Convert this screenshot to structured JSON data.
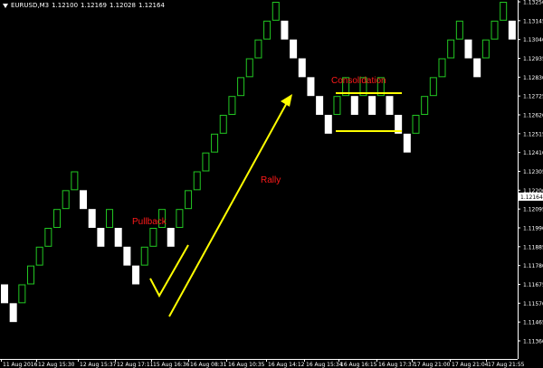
{
  "header": {
    "symbol": "EURUSD,M3",
    "open": "1.12100",
    "high": "1.12169",
    "low": "1.12028",
    "close": "1.12164"
  },
  "colors": {
    "background": "#000000",
    "grid_axis": "#ffffff",
    "bull_outline": "#22c822",
    "bear_fill": "#ffffff",
    "annotation_line": "#ffff00",
    "annotation_text": "#ff1a1a",
    "price_marker_bg": "#ffffff",
    "price_marker_text": "#000000"
  },
  "annotations": {
    "pullback": "Pullback",
    "rally": "Rally",
    "consolidation": "Consolidation"
  },
  "chart_data": {
    "type": "renko",
    "brick_size": 0.00105,
    "ylim": [
      1.1136,
      1.1324
    ],
    "y_ticks": [
      "1.13250",
      "1.13145",
      "1.13040",
      "1.12935",
      "1.12830",
      "1.12725",
      "1.12620",
      "1.12515",
      "1.12410",
      "1.12305",
      "1.12200",
      "1.12095",
      "1.11990",
      "1.11885",
      "1.11780",
      "1.11675",
      "1.11570",
      "1.11465",
      "1.11360"
    ],
    "current_price": "1.12164",
    "x_ticks": [
      "11 Aug 2016",
      "12 Aug 15:30",
      "12 Aug 15:37",
      "12 Aug 17:11",
      "15 Aug 16:36",
      "16 Aug 08:31",
      "16 Aug 10:35",
      "16 Aug 14:12",
      "16 Aug 15:34",
      "16 Aug 16:15",
      "16 Aug 17:37",
      "17 Aug 21:00",
      "17 Aug 21:04",
      "17 Aug 21:55"
    ],
    "bricks": [
      {
        "dir": "down",
        "low": 1.1157
      },
      {
        "dir": "down",
        "low": 1.11465
      },
      {
        "dir": "up",
        "low": 1.1157
      },
      {
        "dir": "up",
        "low": 1.11675
      },
      {
        "dir": "up",
        "low": 1.1178
      },
      {
        "dir": "up",
        "low": 1.11885
      },
      {
        "dir": "up",
        "low": 1.1199
      },
      {
        "dir": "up",
        "low": 1.12095
      },
      {
        "dir": "up",
        "low": 1.122
      },
      {
        "dir": "down",
        "low": 1.12095
      },
      {
        "dir": "down",
        "low": 1.1199
      },
      {
        "dir": "down",
        "low": 1.11885
      },
      {
        "dir": "up",
        "low": 1.1199
      },
      {
        "dir": "down",
        "low": 1.11885
      },
      {
        "dir": "down",
        "low": 1.1178
      },
      {
        "dir": "down",
        "low": 1.11675
      },
      {
        "dir": "up",
        "low": 1.1178
      },
      {
        "dir": "up",
        "low": 1.11885
      },
      {
        "dir": "up",
        "low": 1.1199
      },
      {
        "dir": "down",
        "low": 1.11885
      },
      {
        "dir": "up",
        "low": 1.1199
      },
      {
        "dir": "up",
        "low": 1.12095
      },
      {
        "dir": "up",
        "low": 1.122
      },
      {
        "dir": "up",
        "low": 1.12305
      },
      {
        "dir": "up",
        "low": 1.1241
      },
      {
        "dir": "up",
        "low": 1.12515
      },
      {
        "dir": "up",
        "low": 1.1262
      },
      {
        "dir": "up",
        "low": 1.12725
      },
      {
        "dir": "up",
        "low": 1.1283
      },
      {
        "dir": "up",
        "low": 1.12935
      },
      {
        "dir": "up",
        "low": 1.1304
      },
      {
        "dir": "up",
        "low": 1.13145
      },
      {
        "dir": "down",
        "low": 1.1304
      },
      {
        "dir": "down",
        "low": 1.12935
      },
      {
        "dir": "down",
        "low": 1.1283
      },
      {
        "dir": "down",
        "low": 1.12725
      },
      {
        "dir": "down",
        "low": 1.1262
      },
      {
        "dir": "down",
        "low": 1.12515
      },
      {
        "dir": "up",
        "low": 1.1262
      },
      {
        "dir": "up",
        "low": 1.12725
      },
      {
        "dir": "down",
        "low": 1.1262
      },
      {
        "dir": "up",
        "low": 1.12725
      },
      {
        "dir": "down",
        "low": 1.1262
      },
      {
        "dir": "up",
        "low": 1.12725
      },
      {
        "dir": "down",
        "low": 1.1262
      },
      {
        "dir": "down",
        "low": 1.12515
      },
      {
        "dir": "down",
        "low": 1.1241
      },
      {
        "dir": "up",
        "low": 1.12515
      },
      {
        "dir": "up",
        "low": 1.1262
      },
      {
        "dir": "up",
        "low": 1.12725
      },
      {
        "dir": "up",
        "low": 1.1283
      },
      {
        "dir": "up",
        "low": 1.12935
      },
      {
        "dir": "up",
        "low": 1.1304
      },
      {
        "dir": "down",
        "low": 1.12935
      },
      {
        "dir": "down",
        "low": 1.1283
      },
      {
        "dir": "up",
        "low": 1.12935
      },
      {
        "dir": "up",
        "low": 1.1304
      },
      {
        "dir": "up",
        "low": 1.13145
      },
      {
        "dir": "down",
        "low": 1.1304
      }
    ]
  }
}
